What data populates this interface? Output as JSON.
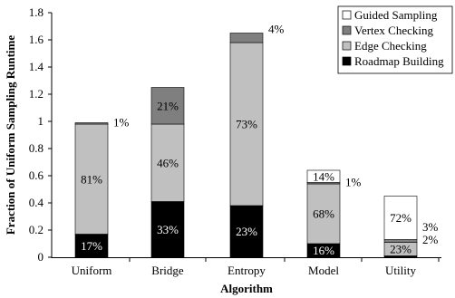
{
  "chart_data": {
    "type": "bar",
    "stacked": true,
    "categories": [
      "Uniform",
      "Bridge",
      "Entropy",
      "Model",
      "Utility"
    ],
    "xlabel": "Algorithm",
    "ylabel": "Fraction of Uniform Sampling Runtime",
    "ylim": [
      0,
      1.8
    ],
    "yticks": [
      "0",
      "0.2",
      "0.4",
      "0.6",
      "0.8",
      "1",
      "1.2",
      "1.4",
      "1.6",
      "1.8"
    ],
    "grid": false,
    "legend_position": "top-right",
    "series": [
      {
        "name": "Roadmap Building",
        "color": "#000000",
        "values": [
          0.17,
          0.41,
          0.38,
          0.1,
          0.01
        ],
        "labels": [
          "17%",
          "33%",
          "23%",
          "16%",
          "2%"
        ]
      },
      {
        "name": "Edge Checking",
        "color": "#c0c0c0",
        "values": [
          0.81,
          0.57,
          1.2,
          0.44,
          0.1
        ],
        "labels": [
          "81%",
          "46%",
          "73%",
          "68%",
          "23%"
        ]
      },
      {
        "name": "Vertex Checking",
        "color": "#7f7f7f",
        "values": [
          0.01,
          0.27,
          0.07,
          0.01,
          0.02
        ],
        "labels": [
          "1%",
          "21%",
          "4%",
          "1%",
          "3%"
        ]
      },
      {
        "name": "Guided Sampling",
        "color": "#ffffff",
        "values": [
          0,
          0,
          0,
          0.09,
          0.32
        ],
        "labels": [
          "",
          "",
          "",
          "14%",
          "72%"
        ]
      }
    ],
    "legend_order": [
      "Guided Sampling",
      "Vertex Checking",
      "Edge Checking",
      "Roadmap Building"
    ]
  }
}
